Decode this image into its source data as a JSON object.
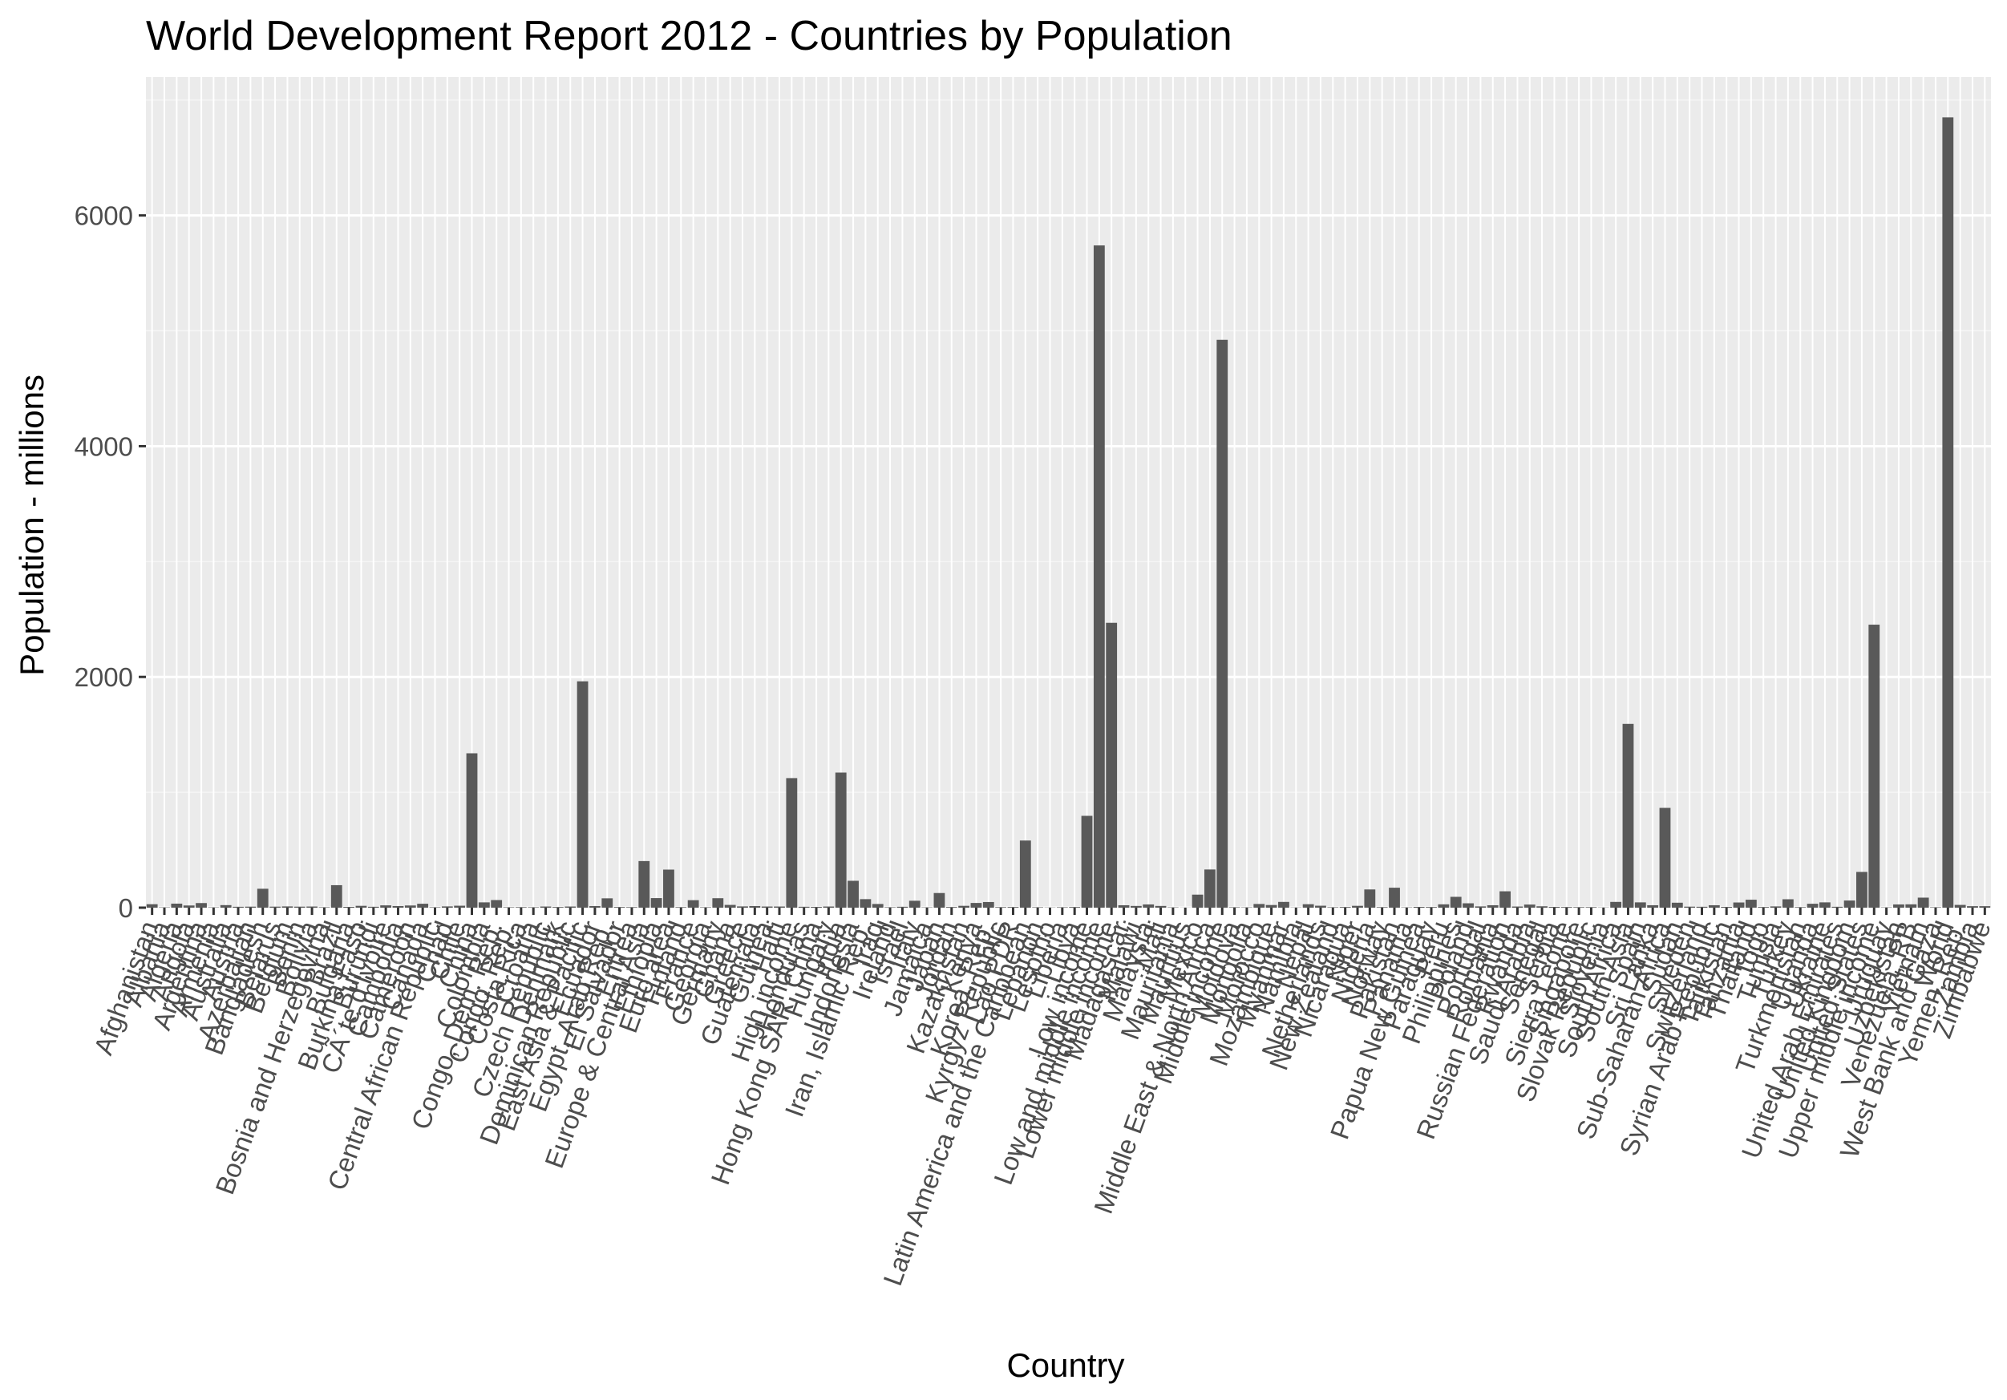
{
  "chart_data": {
    "type": "bar",
    "title": "World Development Report 2012 - Countries by Population",
    "xlabel": "Country",
    "ylabel": "Population - millions",
    "ylim": [
      0,
      7200
    ],
    "yticks": [
      0,
      2000,
      4000,
      6000
    ],
    "y_tick_labels": [
      "0",
      "2000",
      "4000",
      "6000"
    ],
    "grid": true,
    "legend": "none",
    "colors": {
      "bar": "#595959",
      "panel": "#ebebeb",
      "grid_major": "#ffffff",
      "grid_minor": "#f5f5f5"
    },
    "categories": [
      "Afghanistan",
      "Albania",
      "Algeria",
      "Angola",
      "Argentina",
      "Armenia",
      "Australia",
      "Austria",
      "Azerbaijan",
      "Bangladesh",
      "Belarus",
      "Belgium",
      "Benin",
      "Bolivia",
      "Bosnia and Herzegovina",
      "Brazil",
      "Bulgaria",
      "Burkina Faso",
      "Burundi",
      "CÃ´te d'Ivoire",
      "Cambodia",
      "Cameroon",
      "Canada",
      "Central African Republic",
      "Chad",
      "Chile",
      "China",
      "Colombia",
      "Congo, Dem. Rep.",
      "Congo, Rep.",
      "Costa Rica",
      "Croatia",
      "Czech Republic",
      "Denmark",
      "Dominican Republic",
      "East Asia & Pacific",
      "Ecuador",
      "Egypt, Arab Rep.",
      "El Salvador",
      "Eritrea",
      "Europe & Central Asia",
      "Ethiopia",
      "Euro area",
      "Finland",
      "France",
      "Georgia",
      "Germany",
      "Ghana",
      "Greece",
      "Guatemala",
      "Guinea",
      "Haiti",
      "High income",
      "Honduras",
      "Hong Kong SAR, China",
      "Hungary",
      "India",
      "Indonesia",
      "Iran, Islamic Rep.",
      "Iraq",
      "Ireland",
      "Israel",
      "Italy",
      "Jamaica",
      "Japan",
      "Jordan",
      "Kazakhstan",
      "Kenya",
      "Korea, Rep.",
      "Kyrgyz Republic",
      "Lao PDR",
      "Latin America and the Caribbean",
      "Lebanon",
      "Lesotho",
      "Liberia",
      "Libya",
      "Low income",
      "Low and middle income",
      "Lower middle income",
      "Madagascar",
      "Malawi",
      "Malaysia",
      "Mali",
      "Mauritania",
      "Mauritius",
      "Mexico",
      "Middle East & North Africa",
      "Middle income",
      "Moldova",
      "Mongolia",
      "Morocco",
      "Mozambique",
      "Myanmar",
      "Namibia",
      "Nepal",
      "Netherlands",
      "New Zealand",
      "Nicaragua",
      "Niger",
      "Nigeria",
      "Norway",
      "Pakistan",
      "Panama",
      "Papua New Guinea",
      "Paraguay",
      "Peru",
      "Philippines",
      "Poland",
      "Portugal",
      "Romania",
      "Russian Federation",
      "Rwanda",
      "Saudi Arabia",
      "Senegal",
      "Serbia",
      "Sierra Leone",
      "Singapore",
      "Slovak Republic",
      "Slovenia",
      "South Africa",
      "South Asia",
      "Spain",
      "Sri Lanka",
      "Sub-Saharan Africa",
      "Sudan",
      "Sweden",
      "Switzerland",
      "Syrian Arab Republic",
      "Tajikistan",
      "Tanzania",
      "Thailand",
      "Togo",
      "Tunisia",
      "Turkey",
      "Turkmenistan",
      "Uganda",
      "Ukraine",
      "United Arab Emirates",
      "United Kingdom",
      "United States",
      "Upper middle income",
      "Uruguay",
      "Uzbekistan",
      "Venezuela, RB",
      "Vietnam",
      "West Bank and Gaza",
      "World",
      "Yemen, Rep.",
      "Zambia",
      "Zimbabwe"
    ],
    "values": [
      30,
      3,
      35,
      19,
      40,
      3,
      22,
      8,
      9,
      164,
      9,
      11,
      9,
      10,
      4,
      195,
      7,
      16,
      8,
      20,
      14,
      19,
      34,
      4,
      11,
      17,
      1338,
      46,
      66,
      4,
      5,
      4,
      10,
      6,
      10,
      1962,
      14,
      81,
      6,
      5,
      404,
      83,
      330,
      5,
      65,
      4,
      82,
      24,
      11,
      14,
      10,
      10,
      1123,
      8,
      7,
      10,
      1171,
      233,
      74,
      32,
      4,
      8,
      60,
      3,
      127,
      6,
      16,
      41,
      49,
      5,
      6,
      582,
      4,
      2,
      4,
      6,
      796,
      5740,
      2469,
      21,
      15,
      28,
      15,
      3,
      1,
      113,
      331,
      4922,
      4,
      3,
      32,
      23,
      50,
      2,
      30,
      17,
      4,
      6,
      16,
      158,
      5,
      173,
      3,
      7,
      6,
      29,
      94,
      38,
      11,
      21,
      142,
      10,
      27,
      12,
      7,
      6,
      5,
      5,
      2,
      50,
      1593,
      46,
      21,
      865,
      43,
      9,
      8,
      21,
      7,
      45,
      69,
      6,
      11,
      73,
      5,
      34,
      46,
      8,
      62,
      310,
      2453,
      3,
      28,
      29,
      87,
      4,
      6850,
      24,
      13,
      13
    ]
  }
}
